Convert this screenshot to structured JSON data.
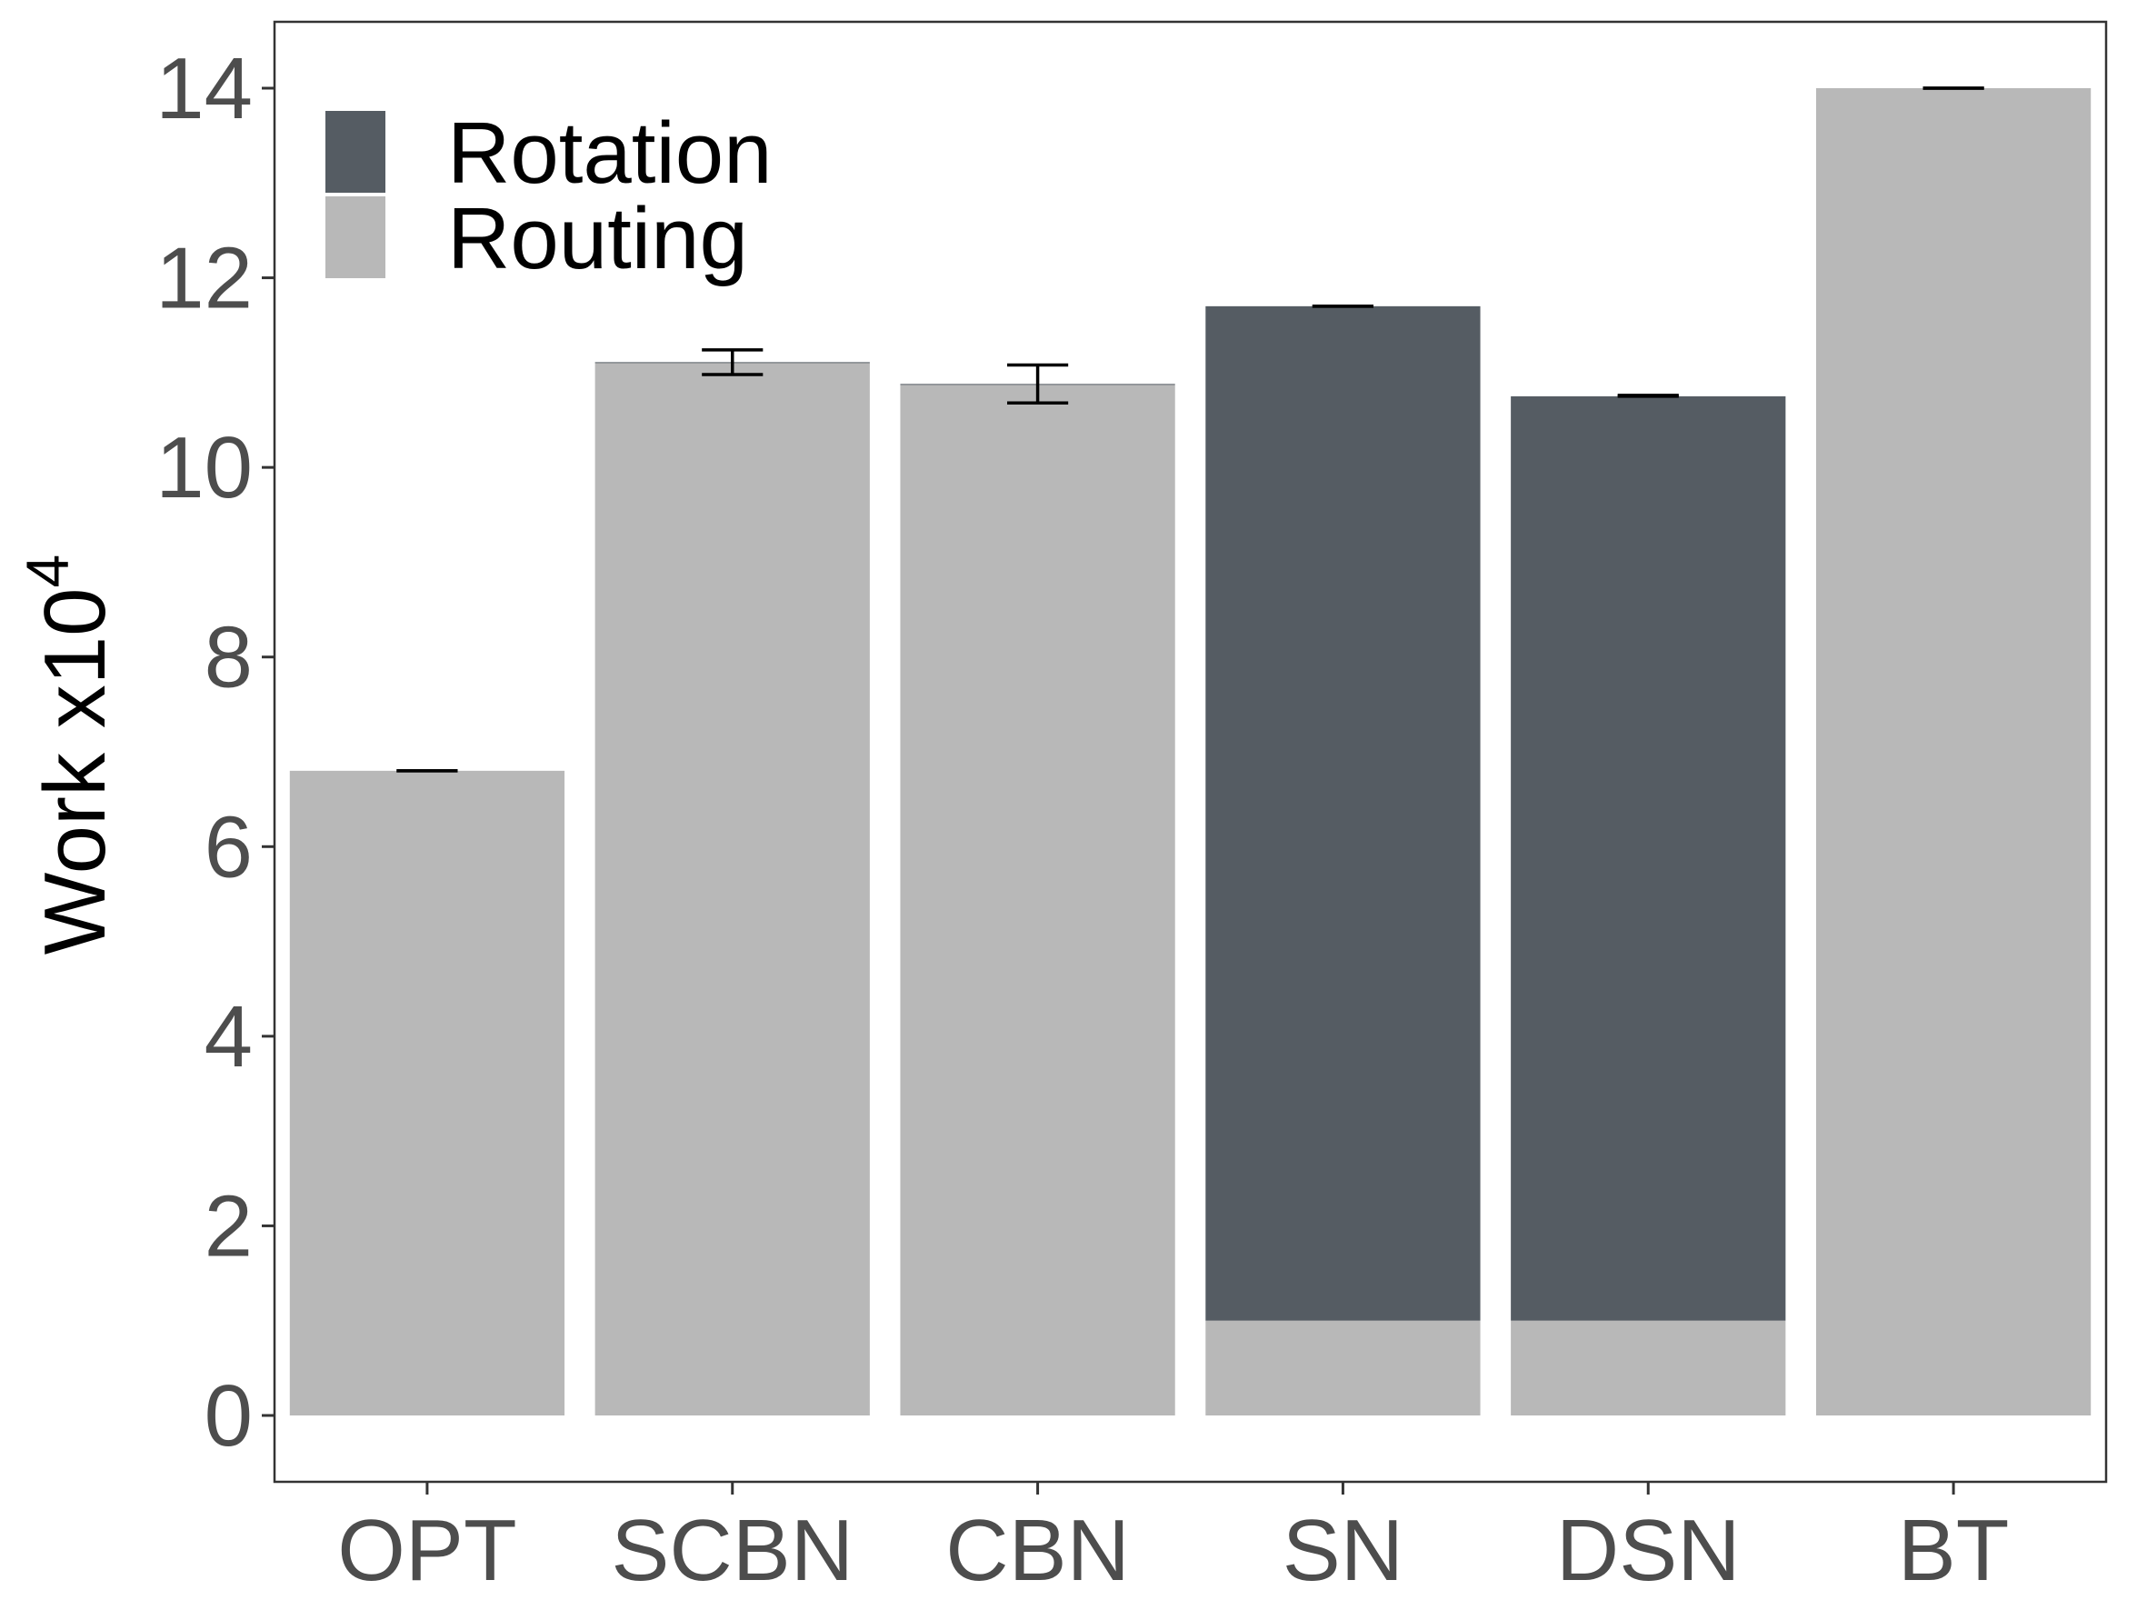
{
  "chart_data": {
    "type": "bar",
    "stacked": true,
    "title": "",
    "xlabel": "",
    "ylabel": {
      "base": "Work x10",
      "superscript": "4"
    },
    "ylim": [
      -0.7,
      14.7
    ],
    "yticks": [
      0,
      2,
      4,
      6,
      8,
      10,
      12,
      14
    ],
    "categories": [
      "OPT",
      "SCBN",
      "CBN",
      "SN",
      "DSN",
      "BT"
    ],
    "series": [
      {
        "name": "Routing",
        "color": "#b8b8b8",
        "values": [
          6.8,
          11.1,
          10.87,
          1.0,
          1.0,
          14.0
        ]
      },
      {
        "name": "Rotation",
        "color": "#555c63",
        "values": [
          0.0,
          0.01,
          0.01,
          10.7,
          9.75,
          0.0
        ]
      }
    ],
    "error_bars": [
      {
        "category": "OPT",
        "low": 6.8,
        "high": 6.8
      },
      {
        "category": "SCBN",
        "low": 10.98,
        "high": 11.24
      },
      {
        "category": "CBN",
        "low": 10.68,
        "high": 11.08
      },
      {
        "category": "SN",
        "low": 11.7,
        "high": 11.7
      },
      {
        "category": "DSN",
        "low": 10.75,
        "high": 10.76
      },
      {
        "category": "BT",
        "low": 14.0,
        "high": 14.0
      }
    ],
    "legend": {
      "placement": "top-left",
      "entries": [
        {
          "label": "Rotation",
          "color": "#555c63"
        },
        {
          "label": "Routing",
          "color": "#b8b8b8"
        }
      ]
    },
    "grid": false
  }
}
